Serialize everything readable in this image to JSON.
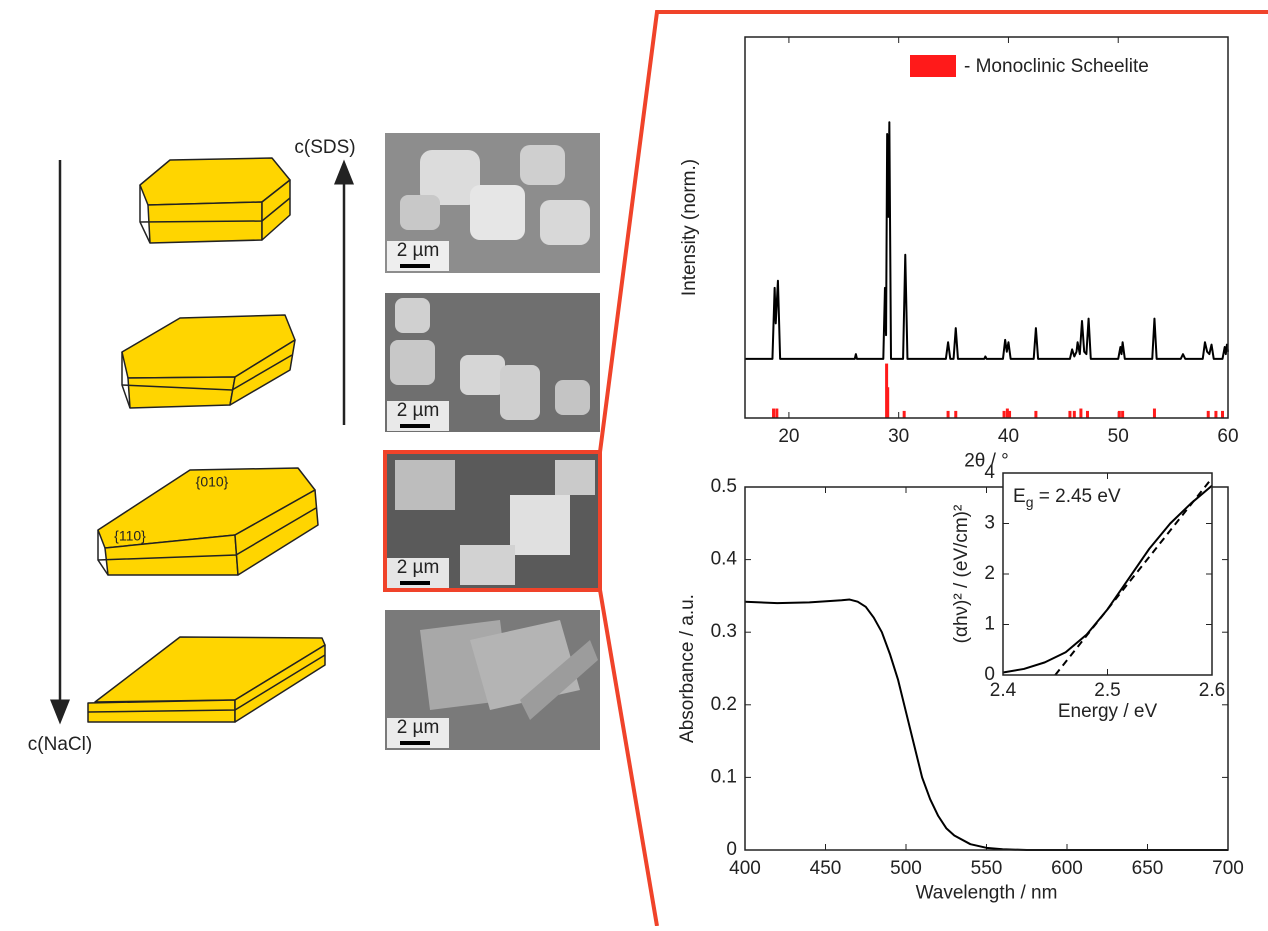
{
  "chart_data": [
    {
      "type": "line",
      "xlabel": "2θ / °",
      "ylabel": "Intensity (norm.)",
      "xlim": [
        16,
        60
      ],
      "xticks": [
        20,
        30,
        40,
        50,
        60
      ],
      "ylim": [
        -0.25,
        1.36
      ],
      "x": [
        16,
        18.5,
        18.7,
        18.8,
        19.0,
        19.2,
        26,
        26.1,
        26.2,
        28.6,
        28.75,
        28.85,
        28.95,
        29.05,
        29.15,
        29.3,
        30.4,
        30.6,
        30.8,
        34.3,
        34.5,
        34.7,
        35.0,
        35.2,
        35.4,
        37.8,
        37.9,
        38,
        39.5,
        39.7,
        39.85,
        40.0,
        40.2,
        42.3,
        42.5,
        42.7,
        45.6,
        45.8,
        46.0,
        46.2,
        46.3,
        46.5,
        46.7,
        46.9,
        47.1,
        47.3,
        47.5,
        50.0,
        50.2,
        50.3,
        50.4,
        50.6,
        53.1,
        53.3,
        53.5,
        55.7,
        55.9,
        56.1,
        57.7,
        57.9,
        58.1,
        58.3,
        58.5,
        58.7,
        59.5,
        59.7,
        59.8,
        59.9,
        60
      ],
      "series": [
        {
          "type": "line",
          "color": "#000000",
          "values": [
            0,
            0,
            0.3,
            0.15,
            0.33,
            0,
            0,
            0.02,
            0,
            0,
            0.3,
            0.1,
            0.95,
            0.6,
            1.0,
            0,
            0,
            0.44,
            0,
            0,
            0.07,
            0,
            0,
            0.13,
            0,
            0,
            0.01,
            0,
            0,
            0.08,
            0.03,
            0.07,
            0,
            0,
            0.13,
            0,
            0,
            0.04,
            0.01,
            0.03,
            0.07,
            0.02,
            0.16,
            0.03,
            0.02,
            0.17,
            0,
            0,
            0.05,
            0.02,
            0.07,
            0,
            0,
            0.17,
            0,
            0,
            0.02,
            0,
            0,
            0.07,
            0.03,
            0.02,
            0.06,
            0,
            0,
            0.05,
            0.02,
            0.06,
            0.03
          ]
        },
        {
          "type": "stick",
          "name": "- Monoclinic Scheelite",
          "color": "#ff1a1a",
          "x": [
            18.6,
            18.9,
            28.9,
            29.0,
            30.5,
            34.5,
            35.2,
            39.6,
            39.9,
            40.1,
            42.5,
            45.6,
            46.0,
            46.6,
            47.2,
            50.1,
            50.4,
            53.3,
            58.2,
            58.9,
            59.5
          ],
          "values": [
            -0.21,
            -0.21,
            -0.02,
            -0.12,
            -0.22,
            -0.22,
            -0.22,
            -0.22,
            -0.21,
            -0.22,
            -0.22,
            -0.22,
            -0.22,
            -0.21,
            -0.22,
            -0.22,
            -0.22,
            -0.21,
            -0.22,
            -0.22,
            -0.22
          ]
        }
      ]
    },
    {
      "type": "line",
      "xlabel": "Wavelength / nm",
      "ylabel": "Absorbance / a.u.",
      "xlim": [
        400,
        700
      ],
      "xticks": [
        400,
        450,
        500,
        550,
        600,
        650,
        700
      ],
      "ylim": [
        0,
        0.5
      ],
      "yticks": [
        0,
        0.1,
        0.2,
        0.3,
        0.4,
        0.5
      ],
      "x": [
        400,
        420,
        440,
        460,
        465,
        470,
        475,
        480,
        485,
        490,
        495,
        500,
        505,
        510,
        515,
        520,
        525,
        530,
        540,
        550,
        560,
        575,
        600,
        700
      ],
      "series": [
        {
          "type": "line",
          "color": "#000000",
          "values": [
            0.342,
            0.34,
            0.341,
            0.344,
            0.345,
            0.342,
            0.335,
            0.32,
            0.3,
            0.27,
            0.235,
            0.19,
            0.145,
            0.1,
            0.07,
            0.047,
            0.03,
            0.02,
            0.008,
            0.003,
            0.001,
            0,
            0,
            0
          ]
        }
      ]
    },
    {
      "type": "line",
      "xlabel": "Energy / eV",
      "ylabel": "(αhν)² / (eV/cm)²",
      "xlim": [
        2.4,
        2.6
      ],
      "xticks": [
        2.4,
        2.5,
        2.6
      ],
      "ylim": [
        0,
        4
      ],
      "yticks": [
        0,
        1,
        2,
        3,
        4
      ],
      "annotation": {
        "symbol": "E",
        "subscript": "g",
        "text": " = 2.45 eV"
      },
      "x": [
        2.4,
        2.42,
        2.44,
        2.46,
        2.48,
        2.5,
        2.52,
        2.54,
        2.56,
        2.58,
        2.6
      ],
      "series": [
        {
          "type": "line",
          "color": "#000000",
          "values": [
            0.05,
            0.12,
            0.25,
            0.45,
            0.8,
            1.3,
            1.9,
            2.5,
            3.0,
            3.4,
            3.75
          ]
        },
        {
          "type": "line",
          "color": "#000000",
          "dashed": true,
          "x": [
            2.45,
            2.6
          ],
          "values": [
            0,
            3.9
          ]
        }
      ]
    }
  ],
  "diagram": {
    "arrow_up_label": "c(SDS)",
    "arrow_down_label": "c(NaCl)",
    "facets": [
      "{010}",
      "{110}"
    ],
    "scale_bars": [
      "2 µm",
      "2 µm",
      "2 µm",
      "2 µm"
    ]
  }
}
